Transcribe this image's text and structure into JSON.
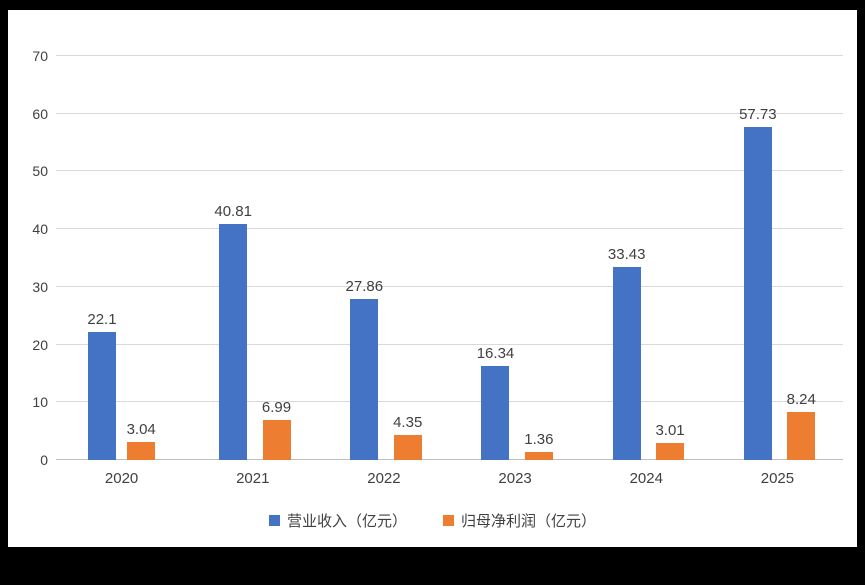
{
  "chart_data": {
    "type": "bar",
    "title": "",
    "categories": [
      "2020",
      "2021",
      "2022",
      "2023",
      "2024",
      "2025"
    ],
    "series": [
      {
        "name": "营业收入（亿元）",
        "color": "#4472C4",
        "values": [
          22.1,
          40.81,
          27.86,
          16.34,
          33.43,
          57.73
        ],
        "labels": [
          "22.1",
          "40.81",
          "27.86",
          "16.34",
          "33.43",
          "57.73"
        ]
      },
      {
        "name": "归母净利润（亿元）",
        "color": "#ED7D31",
        "values": [
          3.04,
          6.99,
          4.35,
          1.36,
          3.01,
          8.24
        ],
        "labels": [
          "3.04",
          "6.99",
          "4.35",
          "1.36",
          "3.01",
          "8.24"
        ]
      }
    ],
    "ylim": [
      0,
      70
    ],
    "yticks": [
      "0",
      "10",
      "20",
      "30",
      "40",
      "50",
      "60",
      "70"
    ],
    "xlabel": "",
    "ylabel": "",
    "grid": "horizontal",
    "legend_position": "bottom"
  },
  "colors": {
    "grid": "#D9D9D9",
    "axis": "#BFBFBF",
    "text": "#404040",
    "frame": "#000000",
    "background": "#FFFFFF"
  }
}
